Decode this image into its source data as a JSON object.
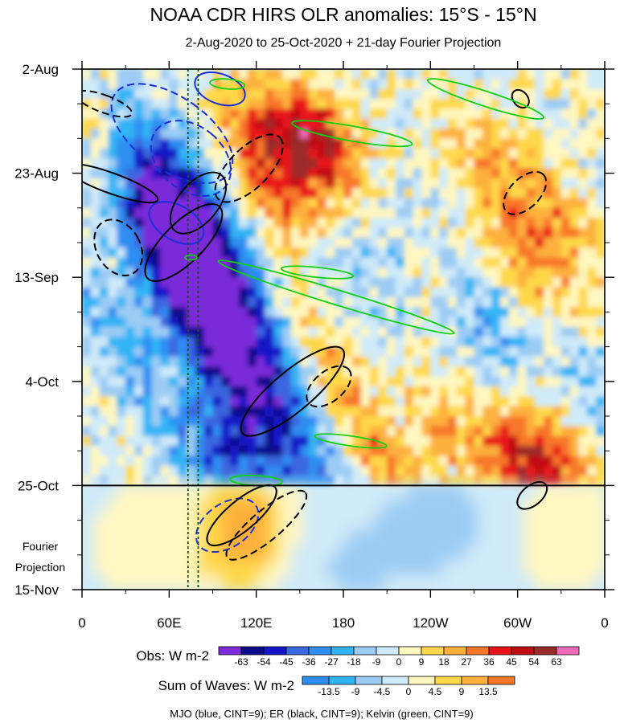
{
  "chart_data": {
    "type": "heatmap",
    "title": "NOAA CDR HIRS OLR anomalies: 15°S - 15°N",
    "subtitle": "2-Aug-2020 to 25-Oct-2020 + 21-day Fourier Projection",
    "x_ticks": [
      "0",
      "60E",
      "120E",
      "180",
      "120W",
      "60W",
      "0"
    ],
    "x_range_deg_east": [
      0,
      360
    ],
    "y_ticks": [
      "2-Aug",
      "23-Aug",
      "13-Sep",
      "4-Oct",
      "25-Oct",
      "15-Nov"
    ],
    "y_range": [
      "2020-08-02",
      "2020-11-15"
    ],
    "observation_end": "2020-10-25",
    "projection_label": [
      "Fourier",
      "Projection"
    ],
    "reference_meridians_deg_east": [
      73,
      80
    ],
    "obs_legend": {
      "label": "Obs: W m-2",
      "ticks": [
        "-63",
        "-54",
        "-45",
        "-36",
        "-27",
        "-18",
        "-9",
        "0",
        "9",
        "18",
        "27",
        "36",
        "45",
        "54",
        "63"
      ],
      "colors": [
        "#7a2bd9",
        "#0a0a8a",
        "#1414c8",
        "#3a66e0",
        "#2e8ef2",
        "#30b4f5",
        "#9cccf4",
        "#cfeaf8",
        "#fff7c0",
        "#fed84a",
        "#fdb03c",
        "#f7772a",
        "#e8131a",
        "#c00a14",
        "#9b2a2a",
        "#f06ab8"
      ]
    },
    "waves_legend": {
      "label": "Sum of Waves: W m-2",
      "ticks": [
        "-13.5",
        "-9",
        "-4.5",
        "0",
        "4.5",
        "9",
        "13.5"
      ],
      "colors": [
        "#2e8ef2",
        "#30b4f5",
        "#9cccf4",
        "#cfeaf8",
        "#fff7c0",
        "#fed84a",
        "#fdb03c",
        "#f7772a"
      ]
    },
    "footnote": "MJO (blue, CINT=9); ER (black, CINT=9); Kelvin (green, CINT=9)",
    "contours": {
      "mjo": [
        {
          "lon": 62,
          "date": "2020-08-15",
          "dlon": 25,
          "days": 14,
          "angle": -55,
          "dashed": true
        },
        {
          "lon": 75,
          "date": "2020-08-20",
          "dlon": 22,
          "days": 9,
          "angle": -50,
          "dashed": true
        },
        {
          "lon": 65,
          "date": "2020-09-02",
          "dlon": 12,
          "days": 6,
          "angle": -60,
          "dashed": false
        },
        {
          "lon": 95,
          "date": "2020-08-06",
          "dlon": 18,
          "days": 3,
          "angle": 20,
          "dashed": false
        },
        {
          "lon": 100,
          "date": "2020-11-02",
          "dlon": 15,
          "days": 7,
          "angle": 55,
          "dashed": true
        }
      ],
      "er": [
        {
          "lon": 15,
          "date": "2020-08-09",
          "dlon": 6,
          "days": 6,
          "angle": -70,
          "dashed": true
        },
        {
          "lon": 20,
          "date": "2020-08-25",
          "dlon": 7,
          "days": 10,
          "angle": -70,
          "dashed": false
        },
        {
          "lon": 25,
          "date": "2020-09-07",
          "dlon": 15,
          "days": 6,
          "angle": -30,
          "dashed": true
        },
        {
          "lon": 70,
          "date": "2020-09-06",
          "dlon": 35,
          "days": 4,
          "angle": -45,
          "dashed": false
        },
        {
          "lon": 80,
          "date": "2020-08-29",
          "dlon": 25,
          "days": 4,
          "angle": -50,
          "dashed": false
        },
        {
          "lon": 115,
          "date": "2020-08-22",
          "dlon": 30,
          "days": 4,
          "angle": -45,
          "dashed": true
        },
        {
          "lon": 145,
          "date": "2020-10-06",
          "dlon": 45,
          "days": 4,
          "angle": -40,
          "dashed": false
        },
        {
          "lon": 170,
          "date": "2020-10-05",
          "dlon": 18,
          "days": 3,
          "angle": -40,
          "dashed": true
        },
        {
          "lon": 305,
          "date": "2020-08-27",
          "dlon": 18,
          "days": 3,
          "angle": -45,
          "dashed": true
        },
        {
          "lon": 110,
          "date": "2020-10-31",
          "dlon": 30,
          "days": 3,
          "angle": -40,
          "dashed": false
        },
        {
          "lon": 127,
          "date": "2020-11-02",
          "dlon": 35,
          "days": 3,
          "angle": -40,
          "dashed": true
        },
        {
          "lon": 310,
          "date": "2020-10-27",
          "dlon": 12,
          "days": 2,
          "angle": -40,
          "dashed": false
        },
        {
          "lon": 302,
          "date": "2020-08-08",
          "dlon": 5,
          "days": 2,
          "angle": -40,
          "dashed": false
        }
      ],
      "kelvin": [
        {
          "lon": 100,
          "date": "2020-08-05",
          "dlon": 12,
          "days": 1,
          "angle": 5,
          "dashed": false
        },
        {
          "lon": 186,
          "date": "2020-08-15",
          "dlon": 42,
          "days": 1.5,
          "angle": 10,
          "dashed": false
        },
        {
          "lon": 278,
          "date": "2020-08-08",
          "dlon": 42,
          "days": 1.5,
          "angle": 18,
          "dashed": false
        },
        {
          "lon": 175,
          "date": "2020-09-17",
          "dlon": 85,
          "days": 1.5,
          "angle": 17,
          "dashed": false
        },
        {
          "lon": 162,
          "date": "2020-09-12",
          "dlon": 25,
          "days": 1,
          "angle": 6,
          "dashed": false
        },
        {
          "lon": 185,
          "date": "2020-10-16",
          "dlon": 25,
          "days": 1,
          "angle": 8,
          "dashed": false
        },
        {
          "lon": 120,
          "date": "2020-10-24",
          "dlon": 18,
          "days": 1,
          "angle": 3,
          "dashed": false
        },
        {
          "lon": 75,
          "date": "2020-09-09",
          "dlon": 4,
          "days": 0.5,
          "angle": 0,
          "dashed": false
        }
      ]
    }
  }
}
